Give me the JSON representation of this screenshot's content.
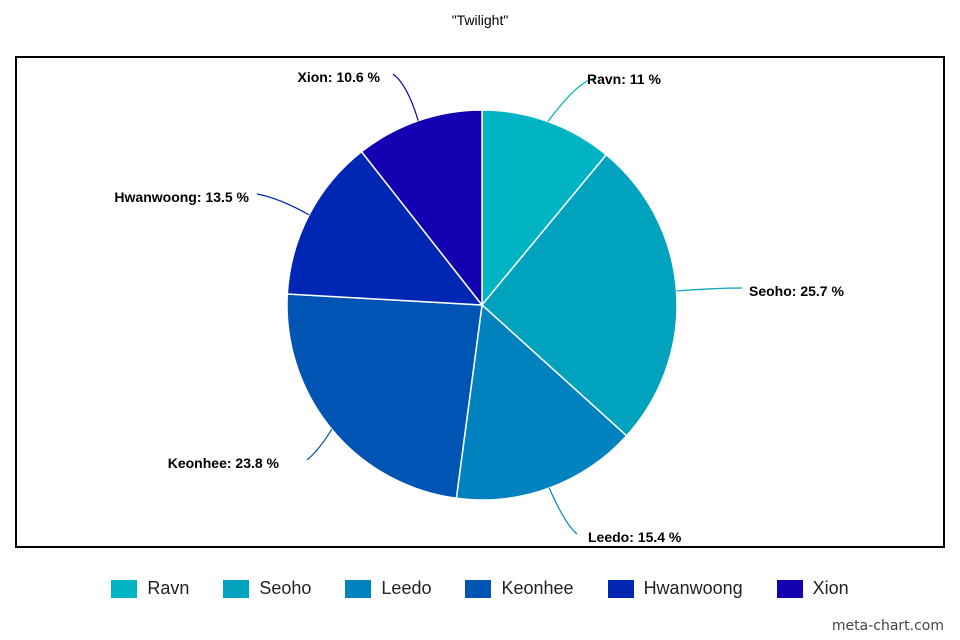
{
  "chart_data": {
    "type": "pie",
    "title": "\"Twilight\"",
    "categories": [
      "Ravn",
      "Seoho",
      "Leedo",
      "Keonhee",
      "Hwanwoong",
      "Xion"
    ],
    "values": [
      11,
      25.7,
      15.4,
      23.8,
      13.5,
      10.6
    ],
    "labels": [
      "Ravn: 11 %",
      "Seoho: 25.7 %",
      "Leedo: 15.4 %",
      "Keonhee: 23.8 %",
      "Hwanwoong: 13.5 %",
      "Xion: 10.6 %"
    ],
    "colors": [
      "#00B4C4",
      "#00A2BE",
      "#0082BF",
      "#0054B3",
      "#0026B4",
      "#1200B1"
    ],
    "legend_position": "bottom"
  },
  "watermark": "meta-chart.com"
}
